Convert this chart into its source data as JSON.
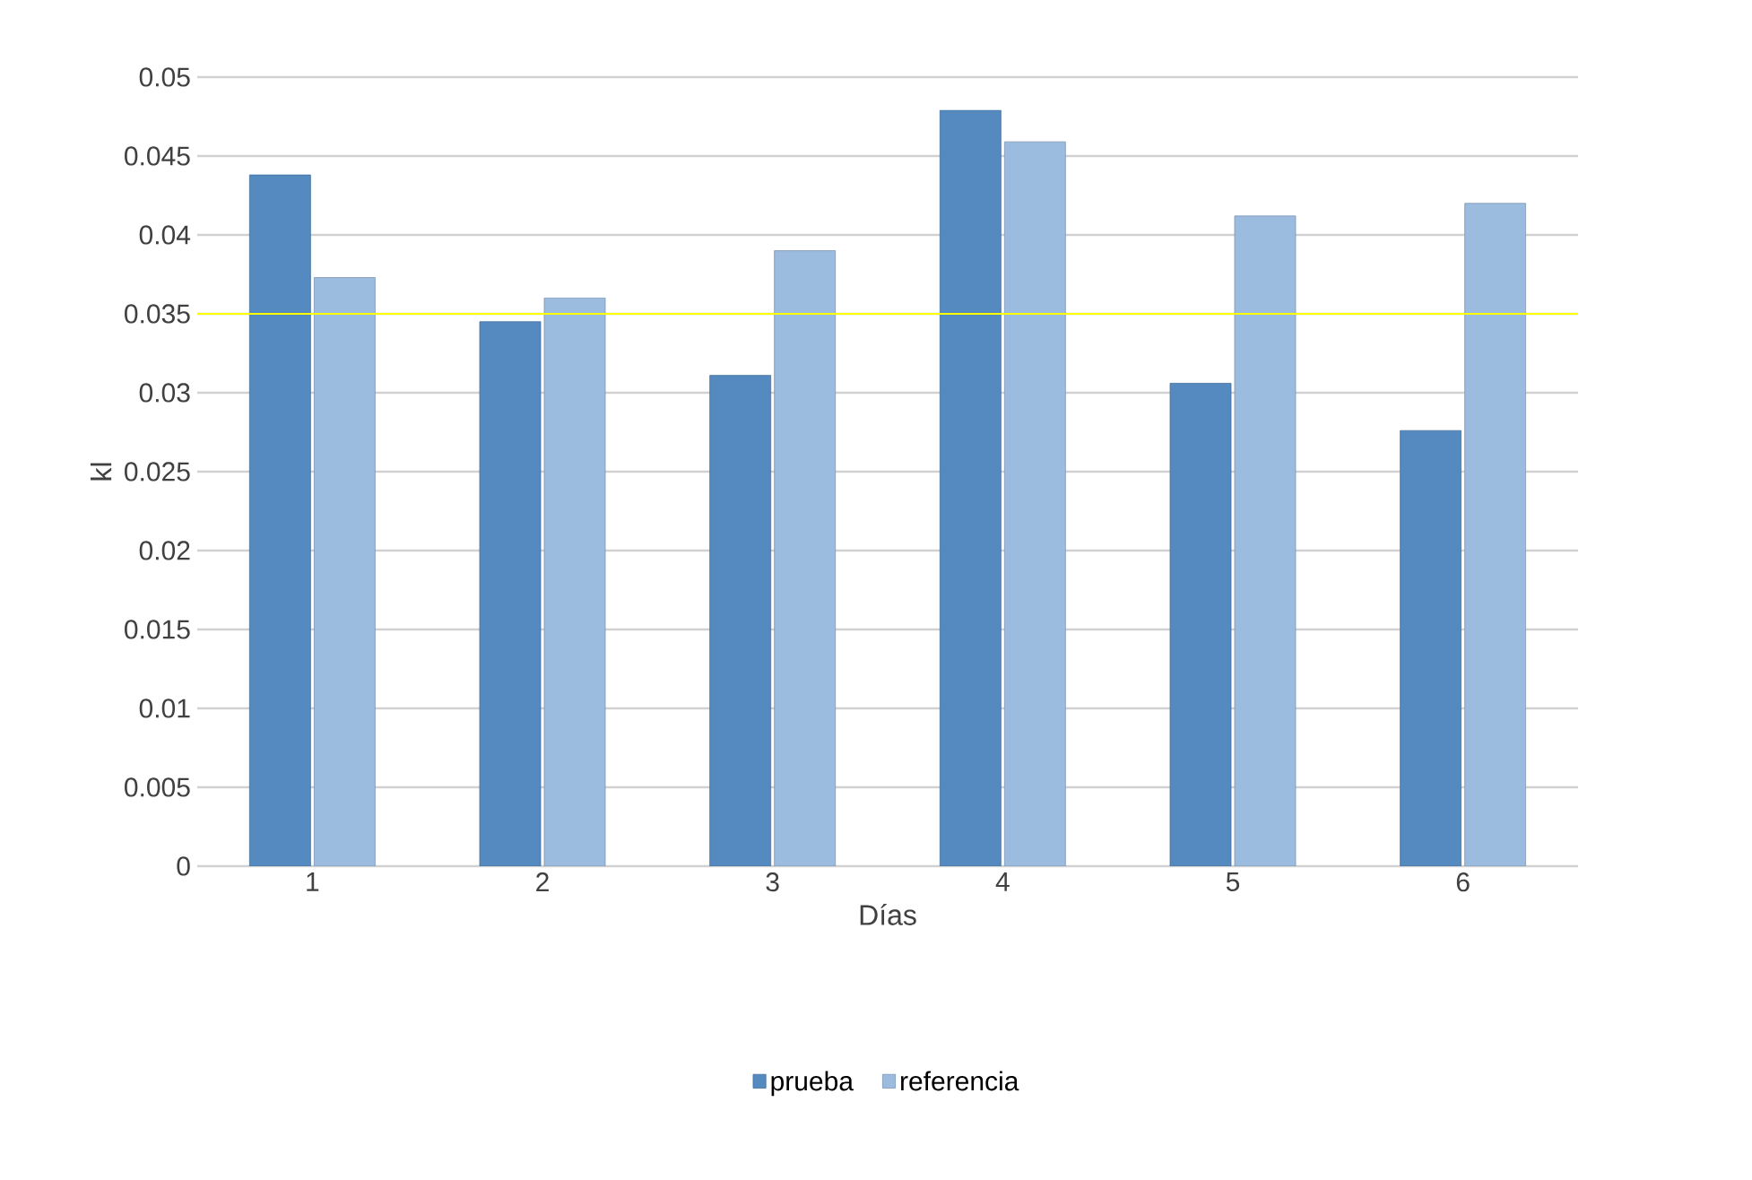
{
  "chart_data": {
    "type": "bar",
    "xlabel": "Días",
    "ylabel": "kl",
    "categories": [
      "1",
      "2",
      "3",
      "4",
      "5",
      "6"
    ],
    "series": [
      {
        "name": "prueba",
        "color": "#558ac0",
        "values": [
          0.0438,
          0.0345,
          0.0311,
          0.0479,
          0.0306,
          0.0276
        ]
      },
      {
        "name": "referencia",
        "color": "#9bbbdf",
        "values": [
          0.0373,
          0.036,
          0.039,
          0.0459,
          0.0412,
          0.042
        ]
      }
    ],
    "ylim": [
      0,
      0.05
    ],
    "yticks": [
      0,
      0.005,
      0.01,
      0.015,
      0.02,
      0.025,
      0.03,
      0.035,
      0.04,
      0.045,
      0.05
    ],
    "ref_lines": [
      {
        "axis": "y",
        "value": 0.035,
        "color": "#ffff00"
      }
    ],
    "grid": "y",
    "legend": "bottom"
  }
}
